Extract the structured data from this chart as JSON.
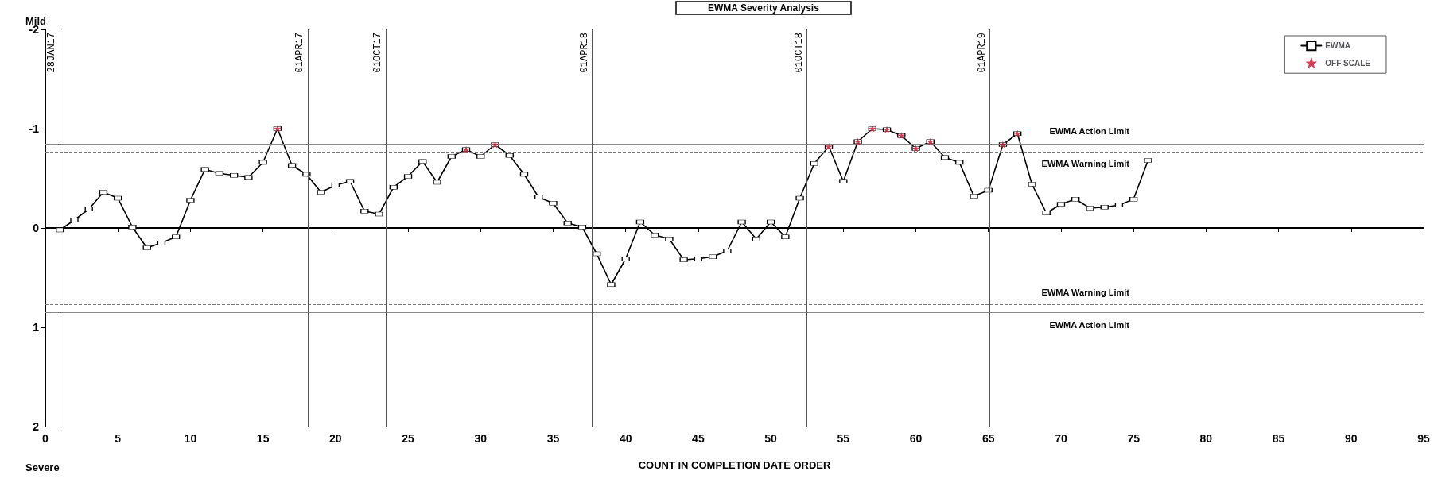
{
  "chart_data": {
    "type": "line",
    "title": "EWMA Severity Analysis",
    "xlabel": "COUNT IN COMPLETION DATE ORDER",
    "annotations": [
      "Mild",
      "Severe"
    ],
    "xlim": [
      0,
      95
    ],
    "xticks": [
      0,
      5,
      10,
      15,
      20,
      25,
      30,
      35,
      40,
      45,
      50,
      55,
      60,
      65,
      70,
      75,
      80,
      85,
      90,
      95
    ],
    "ylim": [
      2,
      -2
    ],
    "yticks": [
      -2,
      -1,
      0,
      1,
      2
    ],
    "grid": false,
    "legend": "top right",
    "series": [
      {
        "name": "EWMA",
        "color": "#000000",
        "marker": "square",
        "line_style": "solid",
        "x": [
          1,
          2,
          3,
          4,
          5,
          6,
          7,
          8,
          9,
          10,
          11,
          12,
          13,
          14,
          15,
          16,
          17,
          18,
          19,
          20,
          21,
          22,
          23,
          24,
          25,
          26,
          27,
          28,
          29,
          30,
          31,
          32,
          33,
          34,
          35,
          36,
          37,
          38,
          39,
          40,
          41,
          42,
          43,
          44,
          45,
          46,
          47,
          48,
          49,
          50,
          51,
          52,
          53,
          54,
          55,
          56,
          57,
          58,
          59,
          60,
          61,
          62,
          63,
          64,
          65,
          66,
          67,
          68,
          69,
          70,
          71,
          72,
          73,
          74,
          75,
          76
        ],
        "values": [
          0.02,
          -0.08,
          -0.19,
          -0.36,
          -0.3,
          -0.01,
          0.2,
          0.15,
          0.09,
          -0.28,
          -0.59,
          -0.55,
          -0.53,
          -0.51,
          -0.66,
          -1.0,
          -0.63,
          -0.54,
          -0.36,
          -0.43,
          -0.47,
          -0.17,
          -0.14,
          -0.41,
          -0.52,
          -0.67,
          -0.46,
          -0.72,
          -0.79,
          -0.72,
          -0.84,
          -0.73,
          -0.54,
          -0.31,
          -0.25,
          -0.05,
          -0.01,
          0.26,
          0.57,
          0.31,
          -0.06,
          0.07,
          0.11,
          0.32,
          0.31,
          0.29,
          0.23,
          -0.06,
          0.11,
          -0.06,
          0.09,
          -0.3,
          -0.65,
          -0.82,
          -0.47,
          -0.87,
          -1.0,
          -0.99,
          -0.93,
          -0.8,
          -0.87,
          -0.71,
          -0.66,
          -0.32,
          -0.38,
          -0.84,
          -0.95,
          -0.44,
          -0.15,
          -0.24,
          -0.29,
          -0.2,
          -0.21,
          -0.23,
          -0.29,
          -0.68
        ]
      },
      {
        "name": "OFF SCALE",
        "type": "scatter",
        "color": "#c8102e",
        "marker": "star",
        "x": [
          16,
          29,
          31,
          54,
          56,
          57,
          58,
          59,
          60,
          61,
          66,
          67
        ],
        "values": [
          -1.0,
          -0.79,
          -0.84,
          -0.82,
          -0.87,
          -1.0,
          -0.99,
          -0.93,
          -0.8,
          -0.87,
          -0.84,
          -0.95
        ]
      }
    ],
    "ref_lines": [
      {
        "axis": "y",
        "value": -0.85,
        "label": "EWMA Action Limit",
        "color": "#888888",
        "line_style": "solid"
      },
      {
        "axis": "y",
        "value": -0.77,
        "label": "EWMA Warning Limit",
        "color": "#777777",
        "line_style": "dashed"
      },
      {
        "axis": "y",
        "value": 0.77,
        "label": "EWMA Warning Limit",
        "color": "#777777",
        "line_style": "dashed"
      },
      {
        "axis": "y",
        "value": 0.85,
        "label": "EWMA Action Limit",
        "color": "#888888",
        "line_style": "solid"
      },
      {
        "axis": "x",
        "value": 1,
        "label": "28JAN17",
        "color": "#555555",
        "line_style": "solid"
      },
      {
        "axis": "x",
        "value": 18.1,
        "label": "01APR17",
        "color": "#555555",
        "line_style": "solid"
      },
      {
        "axis": "x",
        "value": 23.45,
        "label": "01OCT17",
        "color": "#555555",
        "line_style": "solid"
      },
      {
        "axis": "x",
        "value": 37.7,
        "label": "01APR18",
        "color": "#555555",
        "line_style": "solid"
      },
      {
        "axis": "x",
        "value": 52.5,
        "label": "01OCT18",
        "color": "#555555",
        "line_style": "solid"
      },
      {
        "axis": "x",
        "value": 65.1,
        "label": "01APR19",
        "color": "#555555",
        "line_style": "solid"
      }
    ]
  }
}
